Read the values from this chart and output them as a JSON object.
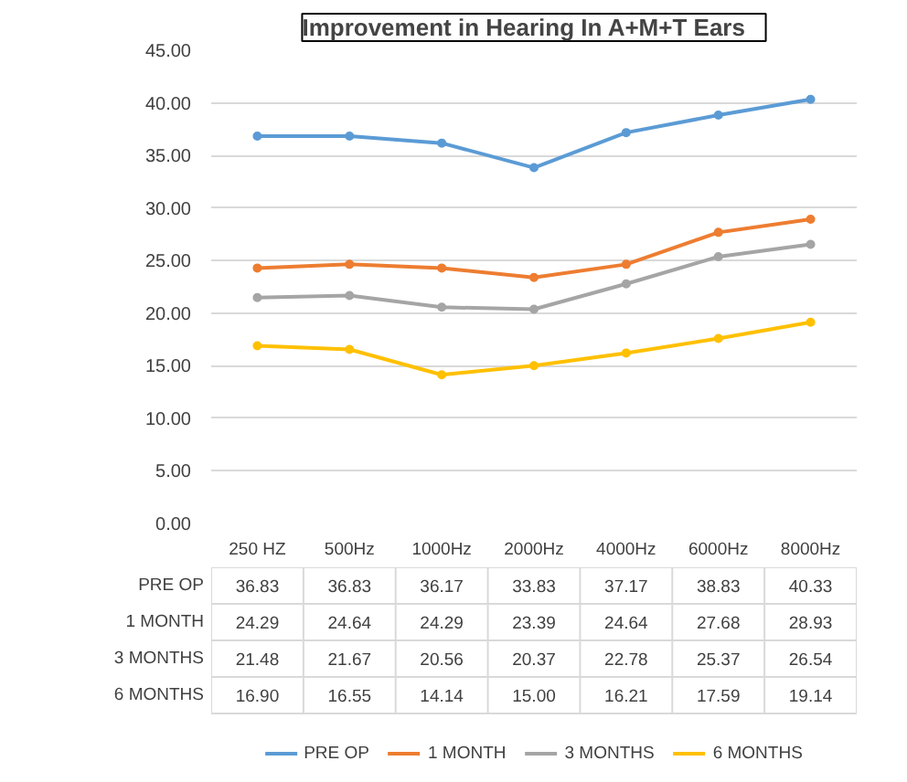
{
  "chart_data": {
    "type": "line",
    "title": "Improvement  in Hearing In  A+M+T  Ears",
    "categories": [
      "250 HZ",
      "500Hz",
      "1000Hz",
      "2000Hz",
      "4000Hz",
      "6000Hz",
      "8000Hz"
    ],
    "series": [
      {
        "name": "PRE OP",
        "color": "#5b9bd5",
        "values": [
          36.83,
          36.83,
          36.17,
          33.83,
          37.17,
          38.83,
          40.33
        ],
        "value_labels": [
          "36.83",
          "36.83",
          "36.17",
          "33.83",
          "37.17",
          "38.83",
          "40.33"
        ]
      },
      {
        "name": "1 MONTH",
        "color": "#ed7d31",
        "values": [
          24.29,
          24.64,
          24.29,
          23.39,
          24.64,
          27.68,
          28.93
        ],
        "value_labels": [
          "24.29",
          "24.64",
          "24.29",
          "23.39",
          "24.64",
          "27.68",
          "28.93"
        ]
      },
      {
        "name": "3 MONTHS",
        "color": "#a5a5a5",
        "values": [
          21.48,
          21.67,
          20.56,
          20.37,
          22.78,
          25.37,
          26.54
        ],
        "value_labels": [
          "21.48",
          "21.67",
          "20.56",
          "20.37",
          "22.78",
          "25.37",
          "26.54"
        ]
      },
      {
        "name": "6 MONTHS",
        "color": "#ffc000",
        "values": [
          16.9,
          16.55,
          14.14,
          15.0,
          16.21,
          17.59,
          19.14
        ],
        "value_labels": [
          "16.90",
          "16.55",
          "14.14",
          "15.00",
          "16.21",
          "17.59",
          "19.14"
        ]
      }
    ],
    "ylim": [
      0,
      45
    ],
    "yticks": [
      {
        "value": 0,
        "label": "0.00"
      },
      {
        "value": 5,
        "label": "5.00"
      },
      {
        "value": 10,
        "label": "10.00"
      },
      {
        "value": 15,
        "label": "15.00"
      },
      {
        "value": 20,
        "label": "20.00"
      },
      {
        "value": 25,
        "label": "25.00"
      },
      {
        "value": 30,
        "label": "30.00"
      },
      {
        "value": 35,
        "label": "35.00"
      },
      {
        "value": 40,
        "label": "40.00"
      },
      {
        "value": 45,
        "label": "45.00"
      }
    ],
    "grid": "y",
    "legend": "bottom",
    "marker": "circle",
    "line_style": "solid",
    "tick_labels": "y"
  }
}
